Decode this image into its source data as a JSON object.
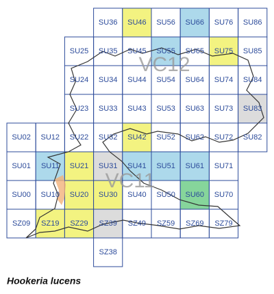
{
  "map": {
    "cells": [
      {
        "label": "SU36"
      },
      {
        "label": "SU46",
        "color": "#f2f27a"
      },
      {
        "label": "SU56"
      },
      {
        "label": "SU66",
        "color": "#a9d7ea"
      },
      {
        "label": "SU76"
      },
      {
        "label": "SU86"
      },
      {
        "label": "SU25"
      },
      {
        "label": "SU35"
      },
      {
        "label": "SU45"
      },
      {
        "label": "SU55",
        "color": "#a9d7ea"
      },
      {
        "label": "SU65"
      },
      {
        "label": "SU75",
        "color": "#f2f27a"
      },
      {
        "label": "SU85"
      },
      {
        "label": "SU24"
      },
      {
        "label": "SU34"
      },
      {
        "label": "SU44"
      },
      {
        "label": "SU54"
      },
      {
        "label": "SU64"
      },
      {
        "label": "SU74"
      },
      {
        "label": "SU84"
      },
      {
        "label": "SU23"
      },
      {
        "label": "SU33"
      },
      {
        "label": "SU43"
      },
      {
        "label": "SU53"
      },
      {
        "label": "SU63"
      },
      {
        "label": "SU73"
      },
      {
        "label": "SU83",
        "color": "#dadada"
      },
      {
        "label": "SU02"
      },
      {
        "label": "SU12"
      },
      {
        "label": "SU22"
      },
      {
        "label": "SU32"
      },
      {
        "label": "SU42",
        "color": "#f2f27a"
      },
      {
        "label": "SU52"
      },
      {
        "label": "SU62"
      },
      {
        "label": "SU72"
      },
      {
        "label": "SU82"
      },
      {
        "label": "SU01"
      },
      {
        "label": "SU11",
        "color": "#a9d7ea"
      },
      {
        "label": "SU21",
        "color": "#f2f27a"
      },
      {
        "label": "SU31",
        "color": "#dadada"
      },
      {
        "label": "SU41",
        "color": "#a9d7ea"
      },
      {
        "label": "SU51",
        "color": "#a9d7ea"
      },
      {
        "label": "SU61",
        "color": "#a9d7ea"
      },
      {
        "label": "SU71"
      },
      {
        "label": "SU00"
      },
      {
        "label": "SU10"
      },
      {
        "label": "SU20",
        "color": "#f2f27a"
      },
      {
        "label": "SU30",
        "color": "#f2f27a"
      },
      {
        "label": "SU40"
      },
      {
        "label": "SU50"
      },
      {
        "label": "SU60",
        "color": "#7fd396"
      },
      {
        "label": "SU70"
      },
      {
        "label": "SZ09"
      },
      {
        "label": "SZ19",
        "color": "#f2f27a"
      },
      {
        "label": "SZ29",
        "color": "#f2f27a"
      },
      {
        "label": "SZ39",
        "color": "#dadada"
      },
      {
        "label": "SZ49"
      },
      {
        "label": "SZ59"
      },
      {
        "label": "SZ69"
      },
      {
        "label": "SZ79"
      },
      {
        "label": "SZ38"
      }
    ],
    "regions": [
      "VC12",
      "VC11"
    ],
    "caption": "Hookeria lucens"
  }
}
